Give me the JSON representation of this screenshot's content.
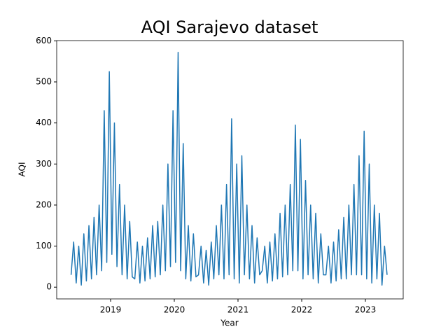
{
  "chart_data": {
    "type": "line",
    "title": "AQI Sarajevo dataset",
    "x_label": "Year",
    "y_label": "AQI",
    "color": "#1f77b4",
    "x": [
      2018.38,
      2018.42,
      2018.46,
      2018.5,
      2018.54,
      2018.58,
      2018.62,
      2018.66,
      2018.7,
      2018.74,
      2018.78,
      2018.82,
      2018.86,
      2018.9,
      2018.94,
      2018.98,
      2019.02,
      2019.06,
      2019.1,
      2019.14,
      2019.18,
      2019.22,
      2019.26,
      2019.3,
      2019.34,
      2019.38,
      2019.42,
      2019.46,
      2019.5,
      2019.54,
      2019.58,
      2019.62,
      2019.66,
      2019.7,
      2019.74,
      2019.78,
      2019.82,
      2019.86,
      2019.9,
      2019.94,
      2019.98,
      2020.02,
      2020.06,
      2020.1,
      2020.14,
      2020.18,
      2020.22,
      2020.26,
      2020.3,
      2020.34,
      2020.38,
      2020.42,
      2020.46,
      2020.5,
      2020.54,
      2020.58,
      2020.62,
      2020.66,
      2020.7,
      2020.74,
      2020.78,
      2020.82,
      2020.86,
      2020.9,
      2020.94,
      2020.98,
      2021.02,
      2021.06,
      2021.1,
      2021.14,
      2021.18,
      2021.22,
      2021.26,
      2021.3,
      2021.34,
      2021.38,
      2021.42,
      2021.46,
      2021.5,
      2021.54,
      2021.58,
      2021.62,
      2021.66,
      2021.7,
      2021.74,
      2021.78,
      2021.82,
      2021.86,
      2021.9,
      2021.94,
      2021.98,
      2022.02,
      2022.06,
      2022.1,
      2022.14,
      2022.18,
      2022.22,
      2022.26,
      2022.3,
      2022.34,
      2022.38,
      2022.42,
      2022.46,
      2022.5,
      2022.54,
      2022.58,
      2022.62,
      2022.66,
      2022.7,
      2022.74,
      2022.78,
      2022.82,
      2022.86,
      2022.9,
      2022.94,
      2022.98,
      2023.02,
      2023.06,
      2023.1,
      2023.14,
      2023.18,
      2023.22,
      2023.26,
      2023.3,
      2023.34
    ],
    "values": [
      30,
      110,
      10,
      100,
      5,
      130,
      15,
      150,
      20,
      170,
      30,
      200,
      40,
      430,
      60,
      525,
      80,
      400,
      50,
      250,
      30,
      200,
      20,
      160,
      25,
      20,
      110,
      10,
      100,
      15,
      120,
      20,
      150,
      25,
      160,
      30,
      200,
      40,
      300,
      50,
      430,
      60,
      572,
      40,
      350,
      20,
      150,
      15,
      130,
      25,
      30,
      100,
      10,
      90,
      5,
      110,
      20,
      150,
      30,
      200,
      20,
      250,
      30,
      410,
      20,
      300,
      10,
      320,
      30,
      200,
      20,
      150,
      10,
      120,
      30,
      40,
      100,
      10,
      110,
      15,
      130,
      20,
      180,
      25,
      200,
      30,
      250,
      40,
      395,
      40,
      360,
      20,
      260,
      30,
      200,
      20,
      180,
      10,
      130,
      30,
      30,
      100,
      10,
      110,
      15,
      140,
      20,
      170,
      20,
      200,
      30,
      250,
      30,
      320,
      30,
      380,
      20,
      300,
      10,
      200,
      20,
      180,
      5,
      100,
      30
    ],
    "xlim": [
      2018.154,
      2023.593
    ],
    "ylim": [
      -28.6,
      600.6
    ],
    "xticks": [
      2019,
      2020,
      2021,
      2022,
      2023
    ],
    "yticks": [
      0,
      100,
      200,
      300,
      400,
      500,
      600
    ]
  }
}
